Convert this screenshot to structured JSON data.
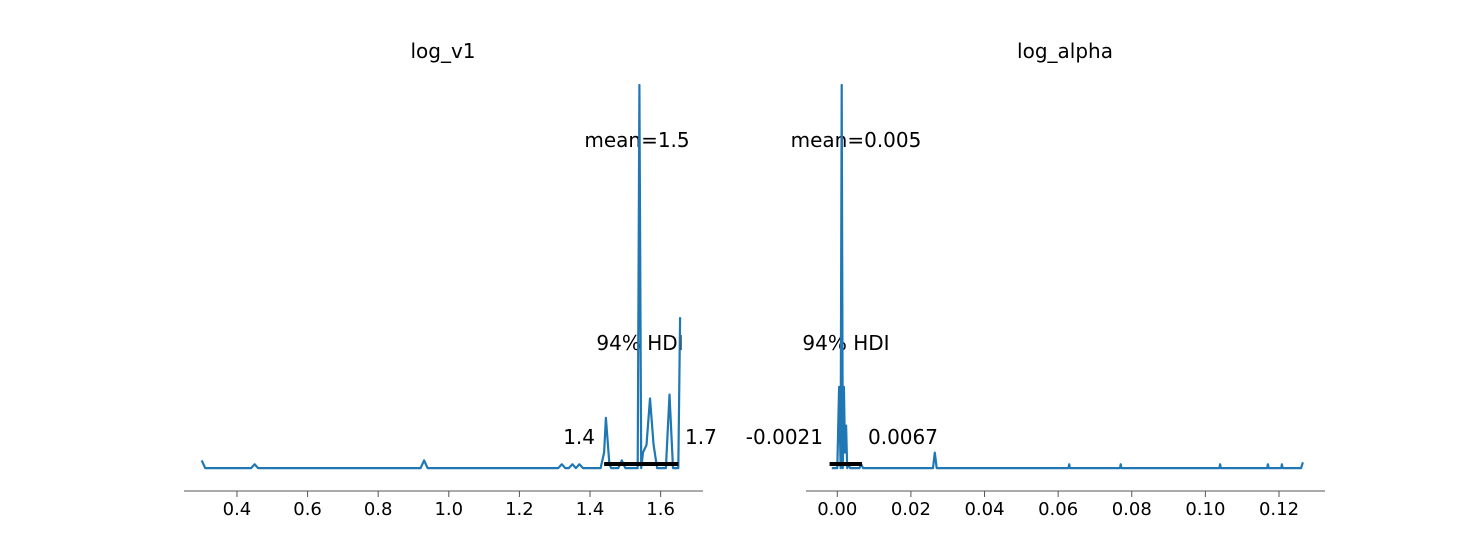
{
  "colors": {
    "line": "#1f77b4",
    "hdi": "#000000",
    "axis": "#555555"
  },
  "chart_data": [
    {
      "type": "line",
      "title": "log_v1",
      "xlim": [
        0.25,
        1.72
      ],
      "ylim": [
        0,
        1
      ],
      "xticks": [
        0.4,
        0.6,
        0.8,
        1.0,
        1.2,
        1.4,
        1.6
      ],
      "xtick_labels": [
        "0.4",
        "0.6",
        "0.8",
        "1.0",
        "1.2",
        "1.4",
        "1.6"
      ],
      "mean_label": "mean=1.5",
      "hdi_label": "94% HDI",
      "hdi": [
        1.44,
        1.65
      ],
      "hdi_low_label": "1.4",
      "hdi_high_label": "1.7",
      "series": [
        {
          "x": [
            0.3,
            0.31,
            0.32,
            0.44,
            0.45,
            0.46,
            0.92,
            0.93,
            0.94,
            1.31,
            1.32,
            1.33,
            1.34,
            1.35,
            1.36,
            1.37,
            1.38,
            1.43,
            1.44,
            1.445,
            1.455,
            1.46,
            1.48,
            1.49,
            1.5,
            1.52,
            1.535,
            1.54,
            1.545,
            1.55,
            1.56,
            1.57,
            1.58,
            1.59,
            1.6,
            1.615,
            1.625,
            1.635,
            1.645,
            1.65,
            1.655
          ],
          "y": [
            0.03,
            0.01,
            0.01,
            0.01,
            0.02,
            0.01,
            0.01,
            0.03,
            0.01,
            0.01,
            0.02,
            0.01,
            0.01,
            0.02,
            0.01,
            0.02,
            0.01,
            0.01,
            0.05,
            0.14,
            0.02,
            0.01,
            0.01,
            0.03,
            0.01,
            0.01,
            0.01,
            1.0,
            0.01,
            0.05,
            0.07,
            0.19,
            0.07,
            0.01,
            0.01,
            0.01,
            0.2,
            0.01,
            0.01,
            0.01,
            0.4
          ]
        }
      ]
    },
    {
      "type": "line",
      "title": "log_alpha",
      "xlim": [
        -0.0085,
        0.1325
      ],
      "ylim": [
        0,
        1
      ],
      "xticks": [
        0.0,
        0.02,
        0.04,
        0.06,
        0.08,
        0.1,
        0.12
      ],
      "xtick_labels": [
        "0.00",
        "0.02",
        "0.04",
        "0.06",
        "0.08",
        "0.10",
        "0.12"
      ],
      "mean_label": "mean=0.005",
      "hdi_label": "94% HDI",
      "hdi": [
        -0.0021,
        0.0067
      ],
      "hdi_low_label": "-0.0021",
      "hdi_high_label": "0.0067",
      "series": [
        {
          "x": [
            -0.0015,
            -0.0005,
            0.0,
            0.0005,
            0.0009,
            0.0012,
            0.0015,
            0.0018,
            0.0021,
            0.0024,
            0.0027,
            0.003,
            0.0035,
            0.005,
            0.006,
            0.0065,
            0.007,
            0.026,
            0.0265,
            0.027,
            0.0628,
            0.063,
            0.0632,
            0.0768,
            0.077,
            0.0772,
            0.1038,
            0.104,
            0.1042,
            0.1168,
            0.117,
            0.1172,
            0.1206,
            0.1208,
            0.121,
            0.126,
            0.1265
          ],
          "y": [
            0.01,
            0.01,
            0.01,
            0.22,
            0.01,
            1.0,
            0.01,
            0.22,
            0.05,
            0.12,
            0.01,
            0.02,
            0.01,
            0.01,
            0.01,
            0.02,
            0.01,
            0.01,
            0.05,
            0.01,
            0.01,
            0.02,
            0.01,
            0.01,
            0.02,
            0.01,
            0.01,
            0.02,
            0.01,
            0.01,
            0.02,
            0.01,
            0.01,
            0.02,
            0.01,
            0.01,
            0.025
          ]
        }
      ]
    }
  ]
}
